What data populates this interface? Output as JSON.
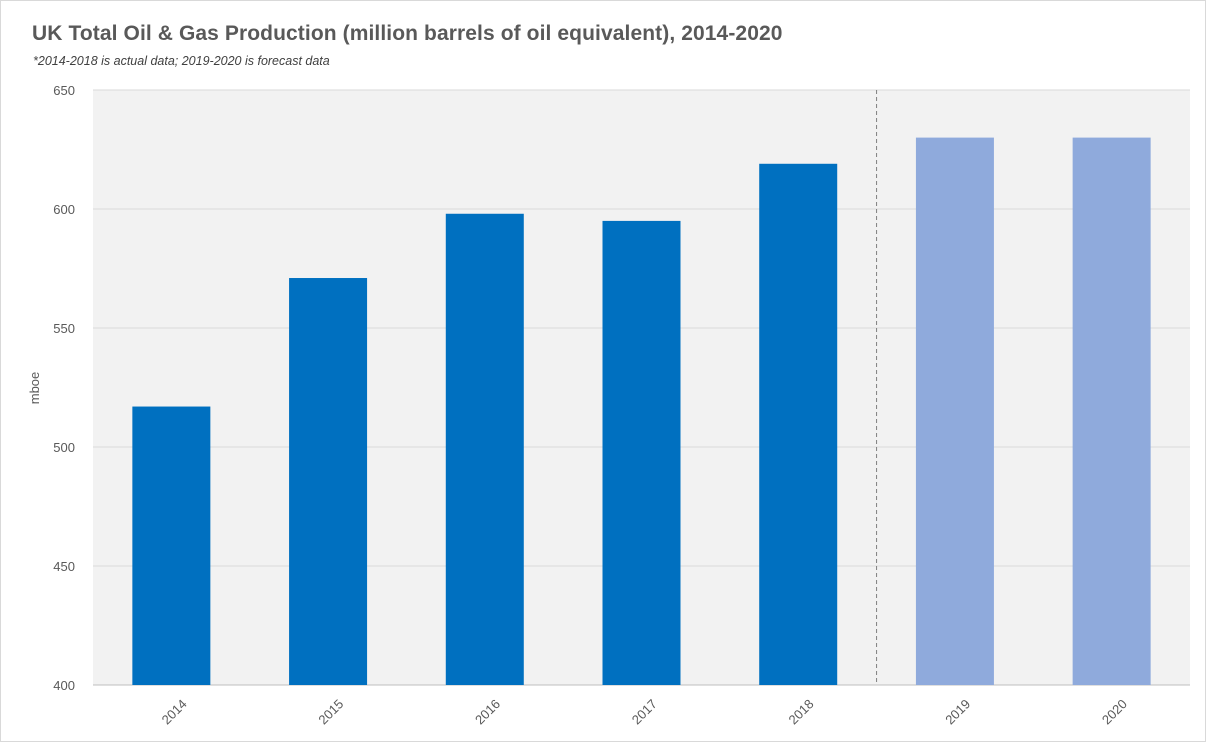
{
  "chart_data": {
    "type": "bar",
    "title": "UK Total Oil & Gas Production  (million barrels of oil equivalent), 2014-2020",
    "subtitle": "*2014-2018 is actual data; 2019-2020 is forecast data",
    "ylabel": "mboe",
    "xlabel": "",
    "ylim": [
      400,
      650
    ],
    "yticks": [
      "400",
      "450",
      "500",
      "550",
      "600",
      "650"
    ],
    "categories": [
      "2014",
      "2015",
      "2016",
      "2017",
      "2018",
      "2019",
      "2020"
    ],
    "values": [
      517,
      571,
      598,
      595,
      619,
      630,
      630
    ],
    "kind": [
      "actual",
      "actual",
      "actual",
      "actual",
      "actual",
      "forecast",
      "forecast"
    ],
    "grid": true,
    "legend": "none",
    "forecast_divider_after": "2018",
    "colors": {
      "actual": "#0070c0",
      "forecast": "#8faadc",
      "plot_background": "#f2f2f2",
      "gridline": "#d9d9d9",
      "divider": "#7f7f7f"
    }
  }
}
